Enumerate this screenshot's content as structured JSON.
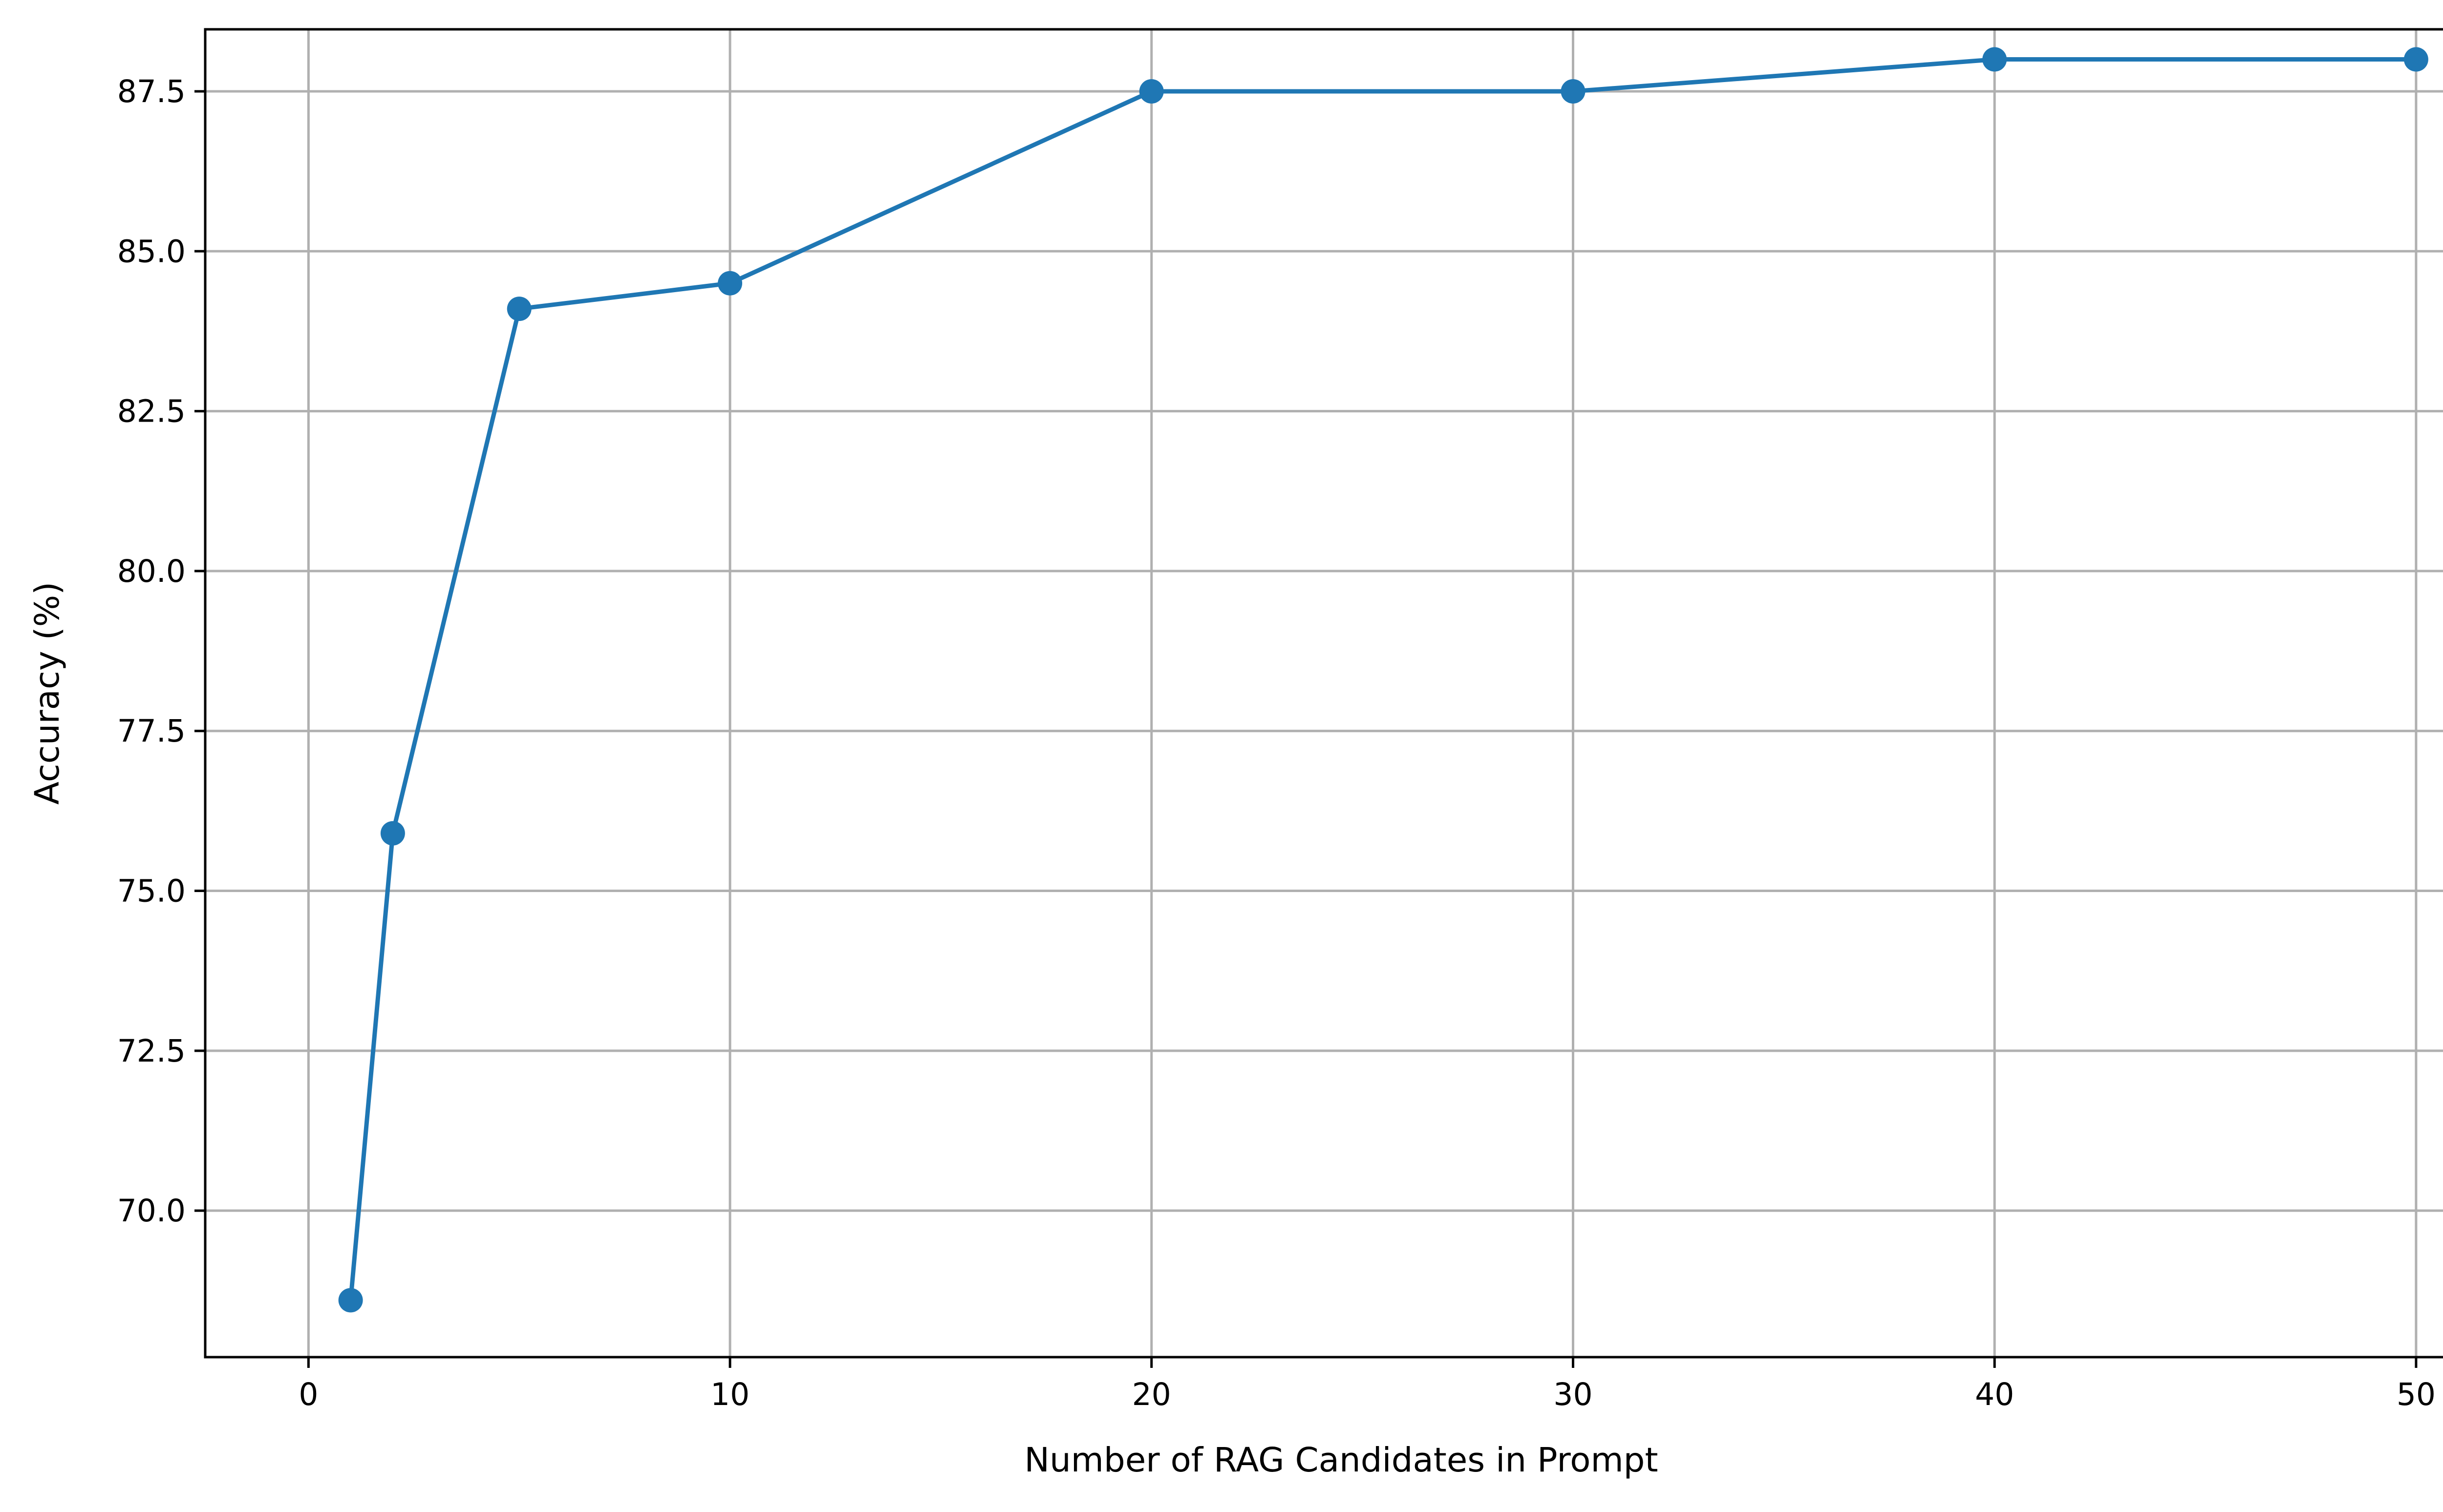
{
  "chart_data": {
    "type": "line",
    "title": "",
    "xlabel": "Number of RAG Candidates in Prompt",
    "ylabel": "Accuracy (%)",
    "xlim": [
      -2.45,
      51.45
    ],
    "ylim": [
      67.71,
      88.47
    ],
    "x_ticks": [
      0,
      10,
      20,
      30,
      40,
      50
    ],
    "x_tick_labels": [
      "0",
      "10",
      "20",
      "30",
      "40",
      "50"
    ],
    "y_ticks": [
      70.0,
      72.5,
      75.0,
      77.5,
      80.0,
      82.5,
      85.0,
      87.5
    ],
    "y_tick_labels": [
      "70.0",
      "72.5",
      "75.0",
      "77.5",
      "80.0",
      "82.5",
      "85.0",
      "87.5"
    ],
    "grid": true,
    "legend": "none",
    "series": [
      {
        "name": "",
        "color": "#1f77b4",
        "marker": "circle",
        "x": [
          1,
          2,
          5,
          10,
          20,
          30,
          40,
          50
        ],
        "values": [
          68.6,
          75.9,
          84.1,
          84.5,
          87.5,
          87.5,
          88.0,
          88.0
        ]
      }
    ]
  }
}
